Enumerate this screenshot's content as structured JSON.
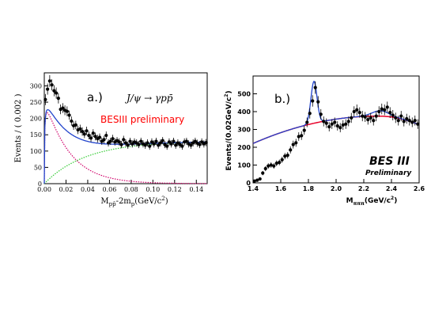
{
  "chart_data": [
    {
      "type": "scatter",
      "panel_label": "a.)",
      "annotation_formula": "J/ψ → γpp̄",
      "annotation_watermark": "BESIII preliminary",
      "xlabel": "M",
      "xlabel_sub": "pp̄",
      "xlabel_mid": "-2m",
      "xlabel_sub2": "p",
      "xlabel_unit": "(GeV/c",
      "xlabel_end": ")",
      "ylabel": "Events / ( 0.002 )",
      "xlim": [
        0,
        0.15
      ],
      "ylim": [
        0,
        340
      ],
      "xticks": [
        "0.00",
        "0.02",
        "0.04",
        "0.06",
        "0.08",
        "0.10",
        "0.12",
        "0.14"
      ],
      "yticks": [
        "0",
        "50",
        "100",
        "150",
        "200",
        "250",
        "300"
      ],
      "colors": {
        "data": "#000000",
        "fit": "#2244cc",
        "signal": "#d0006a",
        "background": "#33cc33",
        "watermark": "#ff0000"
      },
      "series": [
        {
          "name": "",
          "kind": "data",
          "x": [
            0.001,
            0.003,
            0.005,
            0.007,
            0.009,
            0.011,
            0.013,
            0.015,
            0.017,
            0.019,
            0.021,
            0.023,
            0.025,
            0.027,
            0.029,
            0.031,
            0.033,
            0.035,
            0.037,
            0.039,
            0.041,
            0.043,
            0.045,
            0.047,
            0.049,
            0.051,
            0.053,
            0.055,
            0.057,
            0.059,
            0.061,
            0.063,
            0.065,
            0.067,
            0.069,
            0.071,
            0.073,
            0.075,
            0.077,
            0.079,
            0.081,
            0.083,
            0.085,
            0.087,
            0.089,
            0.091,
            0.093,
            0.095,
            0.097,
            0.099,
            0.101,
            0.103,
            0.105,
            0.107,
            0.109,
            0.111,
            0.113,
            0.115,
            0.117,
            0.119,
            0.121,
            0.123,
            0.125,
            0.127,
            0.129,
            0.131,
            0.133,
            0.135,
            0.137,
            0.139,
            0.141,
            0.143,
            0.145,
            0.147,
            0.149
          ],
          "y": [
            258,
            290,
            315,
            303,
            285,
            278,
            262,
            228,
            232,
            225,
            222,
            210,
            192,
            178,
            180,
            165,
            168,
            160,
            152,
            162,
            148,
            140,
            155,
            145,
            138,
            142,
            130,
            135,
            148,
            125,
            130,
            138,
            128,
            132,
            128,
            120,
            135,
            125,
            118,
            130,
            122,
            128,
            125,
            120,
            130,
            122,
            118,
            125,
            115,
            128,
            122,
            130,
            118,
            125,
            132,
            120,
            115,
            128,
            122,
            130,
            118,
            125,
            120,
            115,
            128,
            130,
            122,
            118,
            125,
            130,
            124,
            120,
            128,
            122,
            126
          ],
          "err": [
            17,
            17,
            18,
            17,
            17,
            17,
            16,
            15,
            15,
            15,
            15,
            14,
            14,
            13,
            13,
            13,
            13,
            13,
            12,
            13,
            12,
            12,
            12,
            12,
            12,
            12,
            11,
            12,
            12,
            11,
            11,
            12,
            11,
            11,
            11,
            11,
            12,
            11,
            11,
            11,
            11,
            11,
            11,
            11,
            11,
            11,
            11,
            11,
            11,
            11,
            11,
            11,
            11,
            11,
            11,
            11,
            11,
            11,
            11,
            11,
            11,
            11,
            11,
            11,
            11,
            11,
            11,
            11,
            11,
            11,
            11,
            11,
            11,
            11,
            11
          ]
        }
      ]
    },
    {
      "type": "scatter",
      "panel_label": "b.)",
      "annotation_title": "BES III",
      "annotation_subtitle": "Preliminary",
      "xlabel": "M",
      "xlabel_sub": "πππ",
      "xlabel_unit": "(GeV/c",
      "xlabel_end": ")",
      "ylabel": "Events/(0.02GeV/c",
      "ylabel_end": ")",
      "xlim": [
        1.4,
        2.6
      ],
      "ylim": [
        0,
        600
      ],
      "xticks": [
        "1.4",
        "1.6",
        "1.8",
        "2.0",
        "2.2",
        "2.4",
        "2.6"
      ],
      "yticks": [
        "0",
        "100",
        "200",
        "300",
        "400",
        "500"
      ],
      "colors": {
        "data": "#000000",
        "fit": "#2244cc",
        "background": "#e8002a"
      },
      "series": [
        {
          "name": "",
          "kind": "data",
          "x": [
            1.41,
            1.43,
            1.45,
            1.47,
            1.49,
            1.51,
            1.53,
            1.55,
            1.57,
            1.59,
            1.61,
            1.63,
            1.65,
            1.67,
            1.69,
            1.71,
            1.73,
            1.75,
            1.77,
            1.79,
            1.81,
            1.83,
            1.85,
            1.87,
            1.89,
            1.91,
            1.93,
            1.95,
            1.97,
            1.99,
            2.01,
            2.03,
            2.05,
            2.07,
            2.09,
            2.11,
            2.13,
            2.15,
            2.17,
            2.19,
            2.21,
            2.23,
            2.25,
            2.27,
            2.29,
            2.31,
            2.33,
            2.35,
            2.37,
            2.39,
            2.41,
            2.43,
            2.45,
            2.47,
            2.49,
            2.51,
            2.53,
            2.55,
            2.57,
            2.59
          ],
          "y": [
            10,
            15,
            22,
            55,
            80,
            95,
            100,
            95,
            110,
            115,
            130,
            150,
            155,
            185,
            215,
            225,
            260,
            265,
            295,
            340,
            390,
            460,
            535,
            455,
            385,
            345,
            335,
            315,
            330,
            340,
            320,
            310,
            325,
            330,
            345,
            365,
            400,
            410,
            395,
            375,
            370,
            355,
            365,
            350,
            375,
            400,
            415,
            410,
            425,
            395,
            380,
            365,
            350,
            375,
            345,
            360,
            350,
            340,
            350,
            330
          ],
          "err": [
            6,
            7,
            9,
            12,
            14,
            15,
            15,
            15,
            16,
            16,
            17,
            18,
            18,
            20,
            22,
            22,
            24,
            24,
            25,
            27,
            29,
            32,
            35,
            32,
            29,
            28,
            27,
            26,
            27,
            27,
            26,
            26,
            27,
            27,
            27,
            28,
            30,
            30,
            29,
            29,
            28,
            28,
            28,
            28,
            29,
            30,
            30,
            30,
            31,
            30,
            29,
            29,
            28,
            29,
            28,
            28,
            28,
            27,
            28,
            27
          ]
        }
      ]
    }
  ]
}
